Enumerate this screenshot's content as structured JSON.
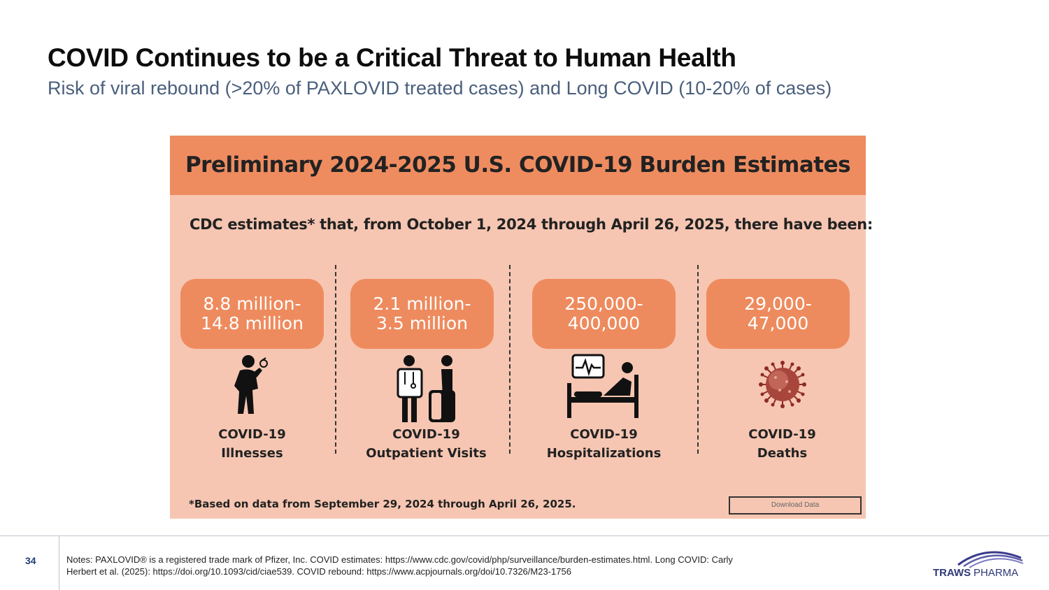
{
  "slide": {
    "title": "COVID Continues to be a Critical Threat to Human Health",
    "subtitle": "Risk of viral rebound (>20% of PAXLOVID treated cases) and Long COVID (10-20% of cases)"
  },
  "infographic": {
    "title": "Preliminary 2024-2025 U.S. COVID-19 Burden Estimates",
    "intro": "CDC estimates* that, from October 1, 2024 through April 26, 2025, there have been:",
    "categories": [
      {
        "value_line1": "8.8 million-",
        "value_line2": "14.8 million",
        "label_line1": "COVID-19",
        "label_line2": "Illnesses",
        "icon": "sick-person-icon"
      },
      {
        "value_line1": "2.1 million-",
        "value_line2": "3.5 million",
        "label_line1": "COVID-19",
        "label_line2": "Outpatient Visits",
        "icon": "doctor-patient-icon"
      },
      {
        "value_line1": "250,000-",
        "value_line2": "400,000",
        "label_line1": "COVID-19",
        "label_line2": "Hospitalizations",
        "icon": "hospital-bed-icon"
      },
      {
        "value_line1": "29,000-",
        "value_line2": "47,000",
        "label_line1": "COVID-19",
        "label_line2": "Deaths",
        "icon": "virus-icon"
      }
    ],
    "footnote": "*Based on data from September 29, 2024 through April 26, 2025.",
    "download_label": "Download Data",
    "colors": {
      "header": "#ee8c60",
      "panel": "#f6c6b2",
      "pill": "#ee8b5e"
    }
  },
  "footer": {
    "page_number": "34",
    "notes_line1": "Notes: PAXLOVID® is a registered trade mark of Pfizer, Inc. COVID estimates: https://www.cdc.gov/covid/php/surveillance/burden-estimates.html. Long COVID: Carly",
    "notes_line2": "Herbert et al. (2025): https://doi.org/10.1093/cid/ciae539. COVID rebound: https://www.acpjournals.org/doi/10.7326/M23-1756",
    "logo_text_1": "TRAWS",
    "logo_text_2": "PHARMA"
  }
}
